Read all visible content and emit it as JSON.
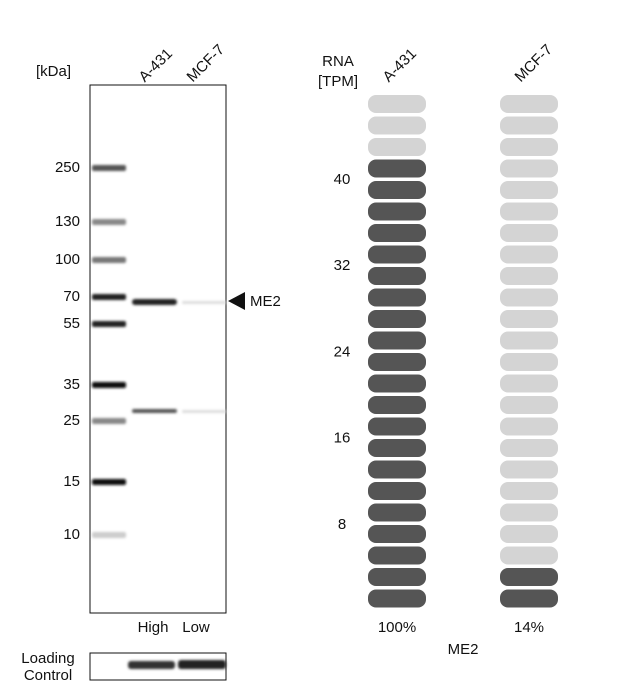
{
  "blot": {
    "unit_label": "[kDa]",
    "lanes": [
      "A-431",
      "MCF-7"
    ],
    "markers": [
      250,
      130,
      100,
      70,
      55,
      35,
      25,
      15,
      10
    ],
    "target": "ME2",
    "levels": [
      "High",
      "Low"
    ],
    "loading_control": [
      "Loading",
      "Control"
    ]
  },
  "rna": {
    "axis_label": [
      "RNA",
      "[TPM]"
    ],
    "ticks": [
      40,
      32,
      24,
      16,
      8
    ],
    "total_segments": 24,
    "samples": [
      {
        "name": "A-431",
        "filled_segments": 21,
        "percent": "100%"
      },
      {
        "name": "MCF-7",
        "filled_segments": 2,
        "percent": "14%"
      }
    ],
    "gene": "ME2"
  }
}
